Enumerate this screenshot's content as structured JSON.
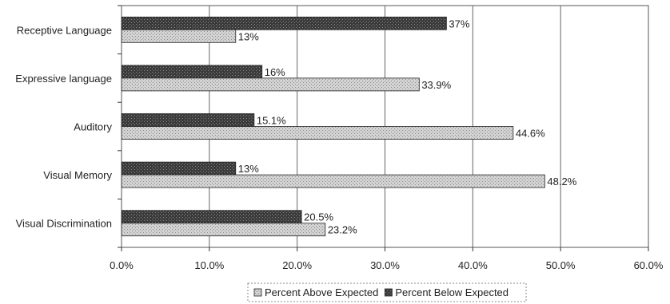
{
  "chart_data": {
    "type": "bar",
    "orientation": "horizontal",
    "categories": [
      "Receptive Language",
      "Expressive language",
      "Auditory",
      "Visual Memory",
      "Visual Discrimination"
    ],
    "series": [
      {
        "name": "Percent Below Expected",
        "values": [
          37,
          16,
          15.1,
          13,
          20.5
        ],
        "labels": [
          "37%",
          "16%",
          "15.1%",
          "13%",
          "20.5%"
        ],
        "color": "#555555"
      },
      {
        "name": "Percent Above Expected",
        "values": [
          13,
          33.9,
          44.6,
          48.2,
          23.2
        ],
        "labels": [
          "13%",
          "33.9%",
          "44.6%",
          "48.2%",
          "23.2%"
        ],
        "color": "#c8c8c8"
      }
    ],
    "xlim": [
      0,
      60
    ],
    "xticks": [
      "0.0%",
      "10.0%",
      "20.0%",
      "30.0%",
      "40.0%",
      "50.0%",
      "60.0%"
    ],
    "grid": true,
    "legend": {
      "position": "bottom",
      "order": [
        "Percent Above Expected",
        "Percent Below Expected"
      ]
    }
  }
}
